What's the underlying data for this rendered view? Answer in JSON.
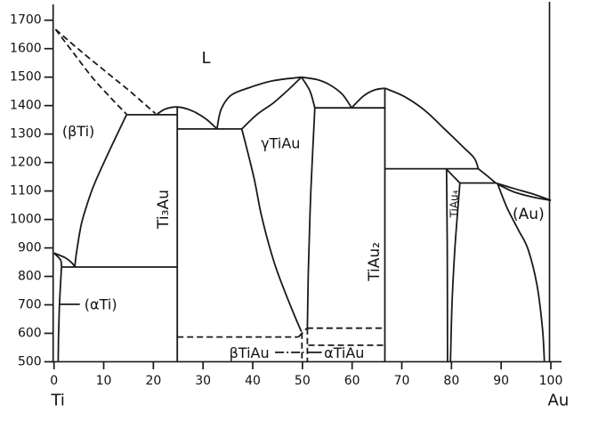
{
  "figure": {
    "background": "#ffffff",
    "line_color": "#1a1a1a",
    "text_color": "#111111"
  },
  "chart_data": {
    "type": "line",
    "x_axis": {
      "range": [
        0,
        100
      ],
      "ticks": [
        0,
        10,
        20,
        30,
        40,
        50,
        60,
        70,
        80,
        90,
        100
      ],
      "end_labels": {
        "left": "Ti",
        "right": "Au"
      }
    },
    "y_axis": {
      "range": [
        500,
        1700
      ],
      "ticks": [
        1700,
        1600,
        1500,
        1400,
        1300,
        1200,
        1100,
        1000,
        900,
        800,
        700,
        600,
        500
      ]
    },
    "phase_labels": [
      {
        "name": "label-liquid",
        "text": "L",
        "comp": 30.6,
        "temp": 1566,
        "rotate": 0,
        "size": 18
      },
      {
        "name": "label-beta-ti",
        "text": "(βTi)",
        "comp": 4.9,
        "temp": 1310,
        "rotate": 0,
        "size": 16
      },
      {
        "name": "label-ti3au",
        "text": "Ti₃Au",
        "comp": 22.1,
        "temp": 1036,
        "rotate": -90,
        "size": 17
      },
      {
        "name": "label-gamma-tiau",
        "text": "γTiAu",
        "comp": 45.6,
        "temp": 1268,
        "rotate": 0,
        "size": 16
      },
      {
        "name": "label-tiau2",
        "text": "TiAu₂",
        "comp": 64.5,
        "temp": 852,
        "rotate": -90,
        "size": 17
      },
      {
        "name": "label-tiau4",
        "text": "TiAu₄",
        "comp": 80.6,
        "temp": 1055,
        "rotate": -90,
        "size": 12
      },
      {
        "name": "label-au",
        "text": "(Au)",
        "comp": 95.5,
        "temp": 1017,
        "rotate": 0,
        "size": 17
      },
      {
        "name": "label-alpha-ti",
        "text": "(αTi)",
        "comp": 9.4,
        "temp": 702,
        "rotate": 0,
        "size": 16
      },
      {
        "name": "label-beta-tiau",
        "text": "βTiAu",
        "comp": 39.3,
        "temp": 531,
        "rotate": 0,
        "size": 16
      },
      {
        "name": "label-alpha-tiau",
        "text": "αTiAu",
        "comp": 58.4,
        "temp": 531,
        "rotate": 0,
        "size": 16
      }
    ],
    "boundaries": [
      {
        "name": "ti-liquidus-dashed",
        "style": "dashed",
        "points": [
          [
            0.3,
            1668
          ],
          [
            5,
            1597
          ],
          [
            10.3,
            1521
          ],
          [
            15.3,
            1450
          ],
          [
            20.4,
            1372
          ]
        ]
      },
      {
        "name": "ti-solidus-dashed",
        "style": "dashed",
        "points": [
          [
            0.3,
            1668
          ],
          [
            4,
            1583
          ],
          [
            7.9,
            1495
          ],
          [
            11.6,
            1424
          ],
          [
            14.6,
            1370
          ]
        ]
      },
      {
        "name": "eutectic-1368-line",
        "style": "solid",
        "points": [
          [
            14.6,
            1368
          ],
          [
            24.8,
            1368
          ]
        ]
      },
      {
        "name": "ti3au-melting-dome",
        "style": "solid",
        "points": [
          [
            20.6,
            1368
          ],
          [
            22.4,
            1388
          ],
          [
            24.8,
            1395
          ],
          [
            27.6,
            1383
          ],
          [
            30.6,
            1353
          ],
          [
            32.8,
            1318
          ]
        ]
      },
      {
        "name": "eutectic-1318-line",
        "style": "solid",
        "points": [
          [
            24.8,
            1318
          ],
          [
            37.8,
            1318
          ]
        ]
      },
      {
        "name": "gamma-liquidus-left",
        "style": "solid",
        "points": [
          [
            32.8,
            1318
          ],
          [
            33.6,
            1385
          ],
          [
            35.6,
            1436
          ],
          [
            39.3,
            1463
          ],
          [
            44,
            1487
          ],
          [
            49.8,
            1500
          ]
        ]
      },
      {
        "name": "gamma-solidus-left",
        "style": "solid",
        "points": [
          [
            37.8,
            1318
          ],
          [
            40.8,
            1368
          ],
          [
            44.2,
            1410
          ],
          [
            47.3,
            1458
          ],
          [
            49.8,
            1500
          ]
        ]
      },
      {
        "name": "gamma-liquidus-right",
        "style": "solid",
        "points": [
          [
            49.8,
            1500
          ],
          [
            53,
            1491
          ],
          [
            55.4,
            1474
          ],
          [
            58,
            1440
          ],
          [
            59.9,
            1392
          ]
        ]
      },
      {
        "name": "gamma-solidus-right",
        "style": "solid",
        "points": [
          [
            49.8,
            1500
          ],
          [
            51.5,
            1452
          ],
          [
            52.5,
            1392
          ]
        ]
      },
      {
        "name": "eutectic-1392-line",
        "style": "solid",
        "points": [
          [
            52.5,
            1392
          ],
          [
            66.6,
            1392
          ]
        ]
      },
      {
        "name": "tiau2-liquidus-left",
        "style": "solid",
        "points": [
          [
            59.9,
            1392
          ],
          [
            62.3,
            1434
          ],
          [
            64.5,
            1455
          ],
          [
            66.6,
            1461
          ]
        ]
      },
      {
        "name": "tiau2-liquidus-right",
        "style": "solid",
        "points": [
          [
            66.6,
            1461
          ],
          [
            70.5,
            1432
          ],
          [
            74.5,
            1385
          ],
          [
            78.3,
            1323
          ],
          [
            82.5,
            1252
          ],
          [
            84.6,
            1215
          ],
          [
            85.4,
            1178
          ]
        ]
      },
      {
        "name": "peritectic-1178-line",
        "style": "solid",
        "points": [
          [
            66.6,
            1178
          ],
          [
            85.4,
            1178
          ]
        ]
      },
      {
        "name": "liquidus-tiau4-region",
        "style": "solid",
        "points": [
          [
            85.4,
            1178
          ],
          [
            87.4,
            1150
          ],
          [
            88.9,
            1128
          ]
        ]
      },
      {
        "name": "peritectic-1128-line",
        "style": "solid",
        "points": [
          [
            81.7,
            1128
          ],
          [
            88.9,
            1128
          ]
        ]
      },
      {
        "name": "au-solidus",
        "style": "solid",
        "points": [
          [
            88.9,
            1128
          ],
          [
            92.5,
            1109
          ],
          [
            96.5,
            1089
          ],
          [
            100,
            1067
          ]
        ]
      },
      {
        "name": "au-liquidus",
        "style": "solid",
        "points": [
          [
            89.3,
            1124
          ],
          [
            92.5,
            1097
          ],
          [
            96.5,
            1078
          ],
          [
            100,
            1067
          ]
        ]
      },
      {
        "name": "au-solvus",
        "style": "solid",
        "points": [
          [
            89.3,
            1124
          ],
          [
            91.2,
            1040
          ],
          [
            93.5,
            962
          ],
          [
            95.4,
            896
          ],
          [
            97.2,
            770
          ],
          [
            98.3,
            620
          ],
          [
            98.7,
            503
          ]
        ]
      },
      {
        "name": "beta-ti-solvus",
        "style": "solid",
        "points": [
          [
            14.6,
            1368
          ],
          [
            11.2,
            1243
          ],
          [
            7.9,
            1115
          ],
          [
            5.9,
            1010
          ],
          [
            5.2,
            956
          ],
          [
            4.5,
            880
          ],
          [
            4.2,
            836
          ]
        ]
      },
      {
        "name": "eutectoid-833-line",
        "style": "solid",
        "points": [
          [
            1.5,
            833
          ],
          [
            24.8,
            833
          ]
        ]
      },
      {
        "name": "alpha-beta-lens-beta-side",
        "style": "solid",
        "points": [
          [
            0,
            882
          ],
          [
            2.2,
            866
          ],
          [
            3.5,
            849
          ],
          [
            4.2,
            834
          ]
        ]
      },
      {
        "name": "alpha-beta-lens-alpha-side",
        "style": "solid",
        "points": [
          [
            0,
            882
          ],
          [
            1.3,
            858
          ],
          [
            1.5,
            834
          ]
        ]
      },
      {
        "name": "alpha-ti-solvus",
        "style": "solid",
        "points": [
          [
            1.5,
            833
          ],
          [
            1.1,
            700
          ],
          [
            0.9,
            580
          ],
          [
            0.85,
            503
          ]
        ]
      },
      {
        "name": "ti3au-compound-line",
        "style": "solid",
        "points": [
          [
            24.8,
            1395
          ],
          [
            24.8,
            500
          ]
        ]
      },
      {
        "name": "gamma-left-boundary",
        "style": "solid",
        "points": [
          [
            37.8,
            1318
          ],
          [
            40.2,
            1150
          ],
          [
            41.8,
            1010
          ],
          [
            44.2,
            855
          ],
          [
            46.6,
            740
          ],
          [
            48.7,
            650
          ],
          [
            49.8,
            606
          ]
        ]
      },
      {
        "name": "gamma-right-boundary",
        "style": "solid",
        "points": [
          [
            52.5,
            1392
          ],
          [
            51.7,
            1100
          ],
          [
            51.2,
            820
          ],
          [
            51,
            620
          ]
        ]
      },
      {
        "name": "tiau2-compound-line",
        "style": "solid",
        "points": [
          [
            66.6,
            1461
          ],
          [
            66.6,
            500
          ]
        ]
      },
      {
        "name": "tiau4-left-boundary",
        "style": "solid",
        "points": [
          [
            79,
            1176
          ],
          [
            79.15,
            900
          ],
          [
            79.2,
            500
          ]
        ]
      },
      {
        "name": "tiau4-right-upper-diag",
        "style": "solid",
        "points": [
          [
            79,
            1176
          ],
          [
            81.7,
            1128
          ]
        ]
      },
      {
        "name": "tiau4-right-boundary",
        "style": "solid",
        "points": [
          [
            81.7,
            1128
          ],
          [
            80.7,
            900
          ],
          [
            80.1,
            700
          ],
          [
            79.8,
            500
          ]
        ]
      },
      {
        "name": "beta-tiau-587-dashed",
        "style": "dashed",
        "points": [
          [
            24.8,
            587
          ],
          [
            49.2,
            587
          ]
        ]
      },
      {
        "name": "beta-tiau-diag-dashed",
        "style": "dashed",
        "points": [
          [
            49.2,
            587
          ],
          [
            50.9,
            618
          ]
        ]
      },
      {
        "name": "alpha-tiau-618-dashed",
        "style": "dashed",
        "points": [
          [
            50.9,
            618
          ],
          [
            66.6,
            618
          ]
        ]
      },
      {
        "name": "alpha-tiau-558-dashed",
        "style": "dashed",
        "points": [
          [
            51.2,
            558
          ],
          [
            66.6,
            558
          ]
        ]
      },
      {
        "name": "beta-tiau-left-vert-dashed",
        "style": "dashed",
        "points": [
          [
            49.9,
            602
          ],
          [
            49.9,
            500
          ]
        ]
      },
      {
        "name": "beta-tiau-right-vert-dashed",
        "style": "dashed",
        "points": [
          [
            51,
            618
          ],
          [
            51,
            500
          ]
        ]
      },
      {
        "name": "alpha-ti-leader-line",
        "style": "solid",
        "points": [
          [
            1.05,
            702
          ],
          [
            5.2,
            702
          ]
        ]
      },
      {
        "name": "beta-tiau-leader-line",
        "style": "dashdot",
        "points": [
          [
            44.5,
            533
          ],
          [
            50.3,
            533
          ]
        ]
      },
      {
        "name": "alpha-tiau-leader-line",
        "style": "solid",
        "points": [
          [
            51,
            533
          ],
          [
            53.9,
            533
          ]
        ]
      }
    ]
  }
}
